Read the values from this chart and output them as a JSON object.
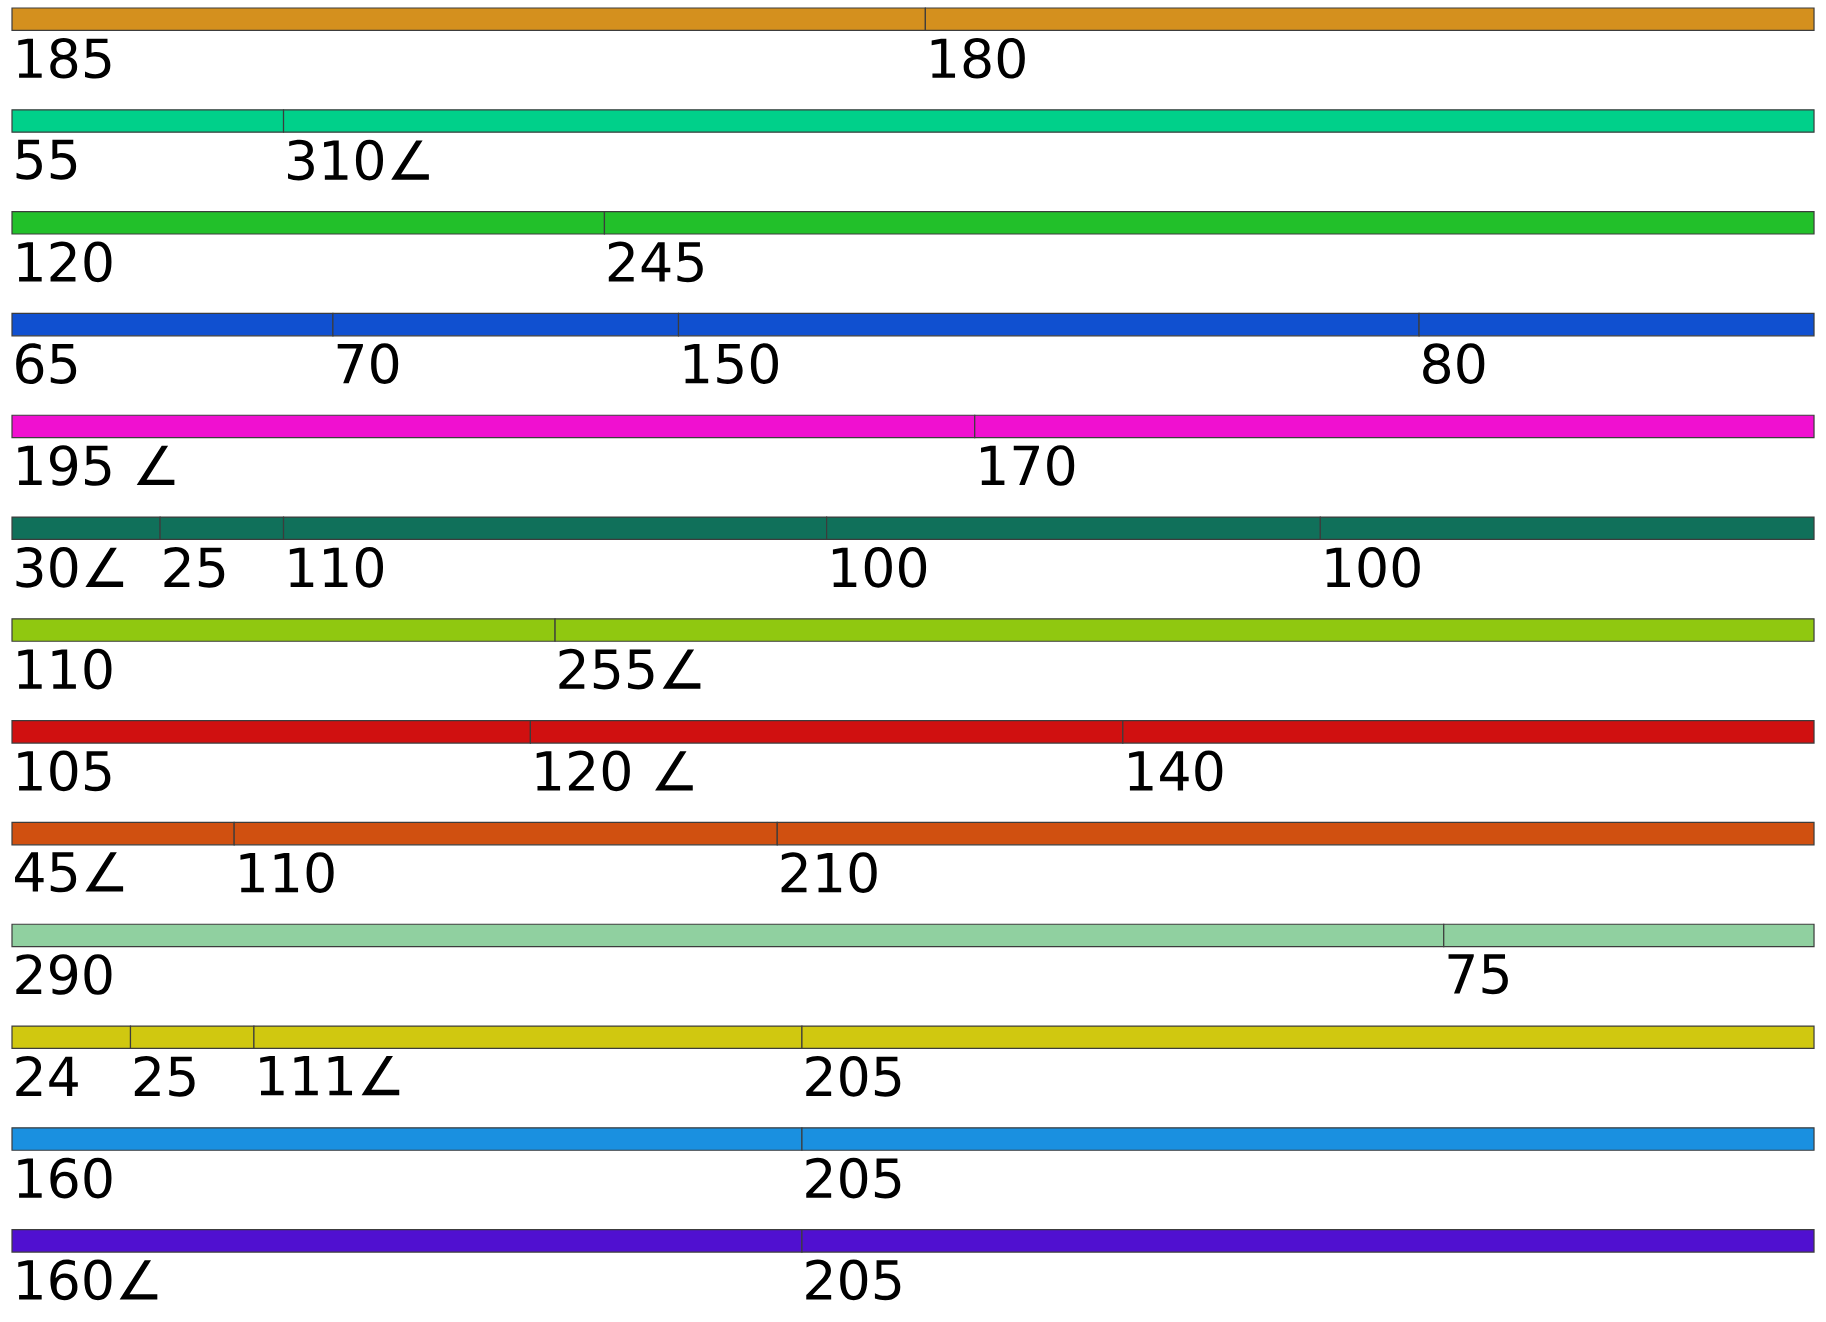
{
  "chart_data": {
    "type": "bar",
    "orientation": "horizontal",
    "stacked": true,
    "categories": [
      null,
      null,
      null,
      null,
      null,
      null,
      null,
      null,
      null,
      null,
      null,
      null,
      null
    ],
    "series": [
      {
        "values": [
          185,
          55,
          120,
          65,
          195,
          30,
          110,
          105,
          45,
          290,
          24,
          160,
          160
        ],
        "value_labels": [
          "185",
          "55",
          "120",
          "65",
          "195 ∠",
          "30∠",
          "110",
          "105",
          "45∠",
          "290",
          "24",
          "160",
          "160∠"
        ],
        "colors": [
          "#d4901e",
          "#00d08a",
          "#22c02a",
          "#1050d0",
          "#f010d0",
          "#10705a",
          "#90c810",
          "#d01010",
          "#d05010",
          "#90d0a0",
          "#d0c810",
          "#1a90e0",
          "#5010d0"
        ]
      },
      {
        "values": [
          180,
          310,
          245,
          70,
          170,
          25,
          255,
          120,
          110,
          75,
          25,
          205,
          205
        ],
        "value_labels": [
          "180",
          "310∠",
          "245",
          "70",
          "170",
          "25",
          "255∠",
          "120 ∠",
          "110",
          "75",
          "25",
          "205",
          "205"
        ],
        "colors": [
          "#d4901e",
          "#00d08a",
          "#22c02a",
          "#1050d0",
          "#f010d0",
          "#10705a",
          "#90c810",
          "#d01010",
          "#d05010",
          "#90d0a0",
          "#d0c810",
          "#1a90e0",
          "#5010d0"
        ]
      },
      {
        "values": [
          null,
          null,
          null,
          150,
          null,
          110,
          null,
          140,
          210,
          null,
          111,
          null,
          null
        ],
        "value_labels": [
          null,
          null,
          null,
          "150",
          null,
          "110",
          null,
          "140",
          "210",
          null,
          "111∠",
          null,
          null
        ],
        "colors": [
          "#d4901e",
          "#00d08a",
          "#22c02a",
          "#1050d0",
          "#f010d0",
          "#10705a",
          "#90c810",
          "#d01010",
          "#d05010",
          "#90d0a0",
          "#d0c810",
          "#1a90e0",
          "#5010d0"
        ]
      },
      {
        "values": [
          null,
          null,
          null,
          80,
          null,
          100,
          null,
          null,
          null,
          null,
          205,
          null,
          null
        ],
        "value_labels": [
          null,
          null,
          null,
          "80",
          null,
          "100",
          null,
          null,
          null,
          null,
          "205",
          null,
          null
        ],
        "colors": [
          "#d4901e",
          "#00d08a",
          "#22c02a",
          "#1050d0",
          "#f010d0",
          "#10705a",
          "#90c810",
          "#d01010",
          "#d05010",
          "#90d0a0",
          "#d0c810",
          "#1a90e0",
          "#5010d0"
        ]
      },
      {
        "values": [
          null,
          null,
          null,
          null,
          null,
          100,
          null,
          null,
          null,
          null,
          null,
          null,
          null
        ],
        "value_labels": [
          null,
          null,
          null,
          null,
          null,
          "100",
          null,
          null,
          null,
          null,
          null,
          null,
          null
        ],
        "colors": [
          "#d4901e",
          "#00d08a",
          "#22c02a",
          "#1050d0",
          "#f010d0",
          "#10705a",
          "#90c810",
          "#d01010",
          "#d05010",
          "#90d0a0",
          "#d0c810",
          "#1a90e0",
          "#5010d0"
        ]
      }
    ]
  }
}
